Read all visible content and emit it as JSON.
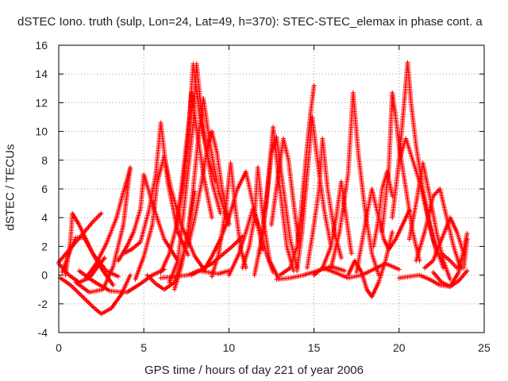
{
  "chart_data": {
    "type": "scatter",
    "title": "dSTEC Iono. truth (sulp, Lon=24, Lat=49, h=370): STEC-STEC_elemax in phase cont. a",
    "xlabel": "GPS time / hours of day 221 of year 2006",
    "ylabel": "dSTEC  / TECUs",
    "xlim": [
      0,
      25
    ],
    "ylim": [
      -4,
      16
    ],
    "xticks": [
      0,
      5,
      10,
      15,
      20,
      25
    ],
    "yticks": [
      -4,
      -2,
      0,
      2,
      4,
      6,
      8,
      10,
      12,
      14,
      16
    ],
    "xtick_labels": [
      "0",
      "5",
      "10",
      "15",
      "20",
      "25"
    ],
    "ytick_labels": [
      "-4",
      "-2",
      "0",
      "2",
      "4",
      "6",
      "8",
      "10",
      "12",
      "14",
      "16"
    ],
    "grid": true,
    "marker": "+",
    "color": "#ff0000",
    "series": [
      {
        "x": [
          0.0,
          0.5,
          1.0,
          1.5,
          2.0,
          2.5
        ],
        "y": [
          0.9,
          1.6,
          2.3,
          3.0,
          3.7,
          4.3
        ]
      },
      {
        "x": [
          0.0,
          0.6,
          1.2,
          1.8,
          2.3,
          2.7
        ],
        "y": [
          0.8,
          0.0,
          -0.5,
          -0.2,
          0.6,
          1.2
        ]
      },
      {
        "x": [
          0.1,
          0.7,
          1.4,
          2.0,
          2.5,
          3.1,
          3.7,
          4.2
        ],
        "y": [
          -0.2,
          -0.7,
          -1.5,
          -2.2,
          -2.7,
          -2.3,
          -1.3,
          0.0
        ]
      },
      {
        "x": [
          0.2,
          0.6,
          1.0,
          1.5,
          2.0,
          2.6,
          3.2
        ],
        "y": [
          0.2,
          1.5,
          2.6,
          2.6,
          1.5,
          0.3,
          -0.7
        ]
      },
      {
        "x": [
          0.4,
          0.7,
          0.8,
          1.2,
          2.0,
          2.8,
          3.5
        ],
        "y": [
          0.0,
          2.5,
          4.3,
          3.5,
          1.5,
          0.3,
          -0.1
        ]
      },
      {
        "x": [
          1.0,
          1.8,
          2.6,
          3.2,
          3.8,
          4.2
        ],
        "y": [
          -0.5,
          -1.2,
          -1.0,
          0.6,
          3.5,
          7.5
        ]
      },
      {
        "x": [
          1.6,
          2.2,
          2.8,
          3.4,
          3.8,
          4.2
        ],
        "y": [
          -0.2,
          0.8,
          2.2,
          4.0,
          5.8,
          7.4
        ]
      },
      {
        "x": [
          1.2,
          2.0,
          3.0,
          4.0,
          4.8,
          5.5,
          6.2
        ],
        "y": [
          0.3,
          -0.4,
          -1.1,
          -1.2,
          -0.6,
          0.0,
          0.4
        ]
      },
      {
        "x": [
          3.5,
          4.0,
          4.4,
          4.8,
          5.0,
          5.5,
          6.2,
          7.0
        ],
        "y": [
          1.0,
          2.0,
          3.0,
          4.6,
          7.0,
          5.0,
          2.5,
          1.0
        ]
      },
      {
        "x": [
          3.8,
          4.3,
          4.8,
          5.3,
          5.7,
          6.0,
          6.4,
          7.0,
          7.6
        ],
        "y": [
          1.5,
          1.8,
          2.3,
          4.5,
          7.0,
          10.6,
          6.5,
          3.0,
          1.4
        ]
      },
      {
        "x": [
          4.5,
          5.0,
          5.5,
          5.8,
          6.2,
          6.6,
          7.2,
          8.0,
          8.6
        ],
        "y": [
          -0.3,
          1.3,
          3.5,
          6.5,
          8.3,
          6.0,
          3.5,
          1.3,
          0.3
        ]
      },
      {
        "x": [
          5.2,
          5.7,
          6.2,
          6.8,
          7.3,
          7.6,
          8.0
        ],
        "y": [
          0.0,
          -0.6,
          -1.0,
          -0.5,
          1.3,
          3.0,
          5.8
        ]
      },
      {
        "x": [
          6.0,
          6.5,
          6.9,
          7.3,
          7.6,
          7.8,
          8.0,
          8.5,
          9.0
        ],
        "y": [
          0.2,
          1.5,
          3.3,
          6.2,
          9.5,
          12.7,
          11.0,
          7.0,
          4.0
        ]
      },
      {
        "x": [
          6.5,
          7.0,
          7.3,
          7.6,
          7.9,
          8.1,
          8.5,
          9.0,
          9.5
        ],
        "y": [
          -0.5,
          1.0,
          4.0,
          7.3,
          10.5,
          14.7,
          10.0,
          6.5,
          4.3
        ]
      },
      {
        "x": [
          6.8,
          7.2,
          7.6,
          7.9,
          8.2,
          8.5,
          8.9,
          9.4,
          10.0
        ],
        "y": [
          -1.0,
          0.6,
          3.0,
          6.0,
          9.5,
          12.3,
          9.0,
          5.8,
          3.5
        ]
      },
      {
        "x": [
          7.0,
          7.4,
          7.7,
          7.9,
          8.3,
          8.8,
          9.2
        ],
        "y": [
          4.0,
          8.0,
          11.2,
          14.7,
          11.0,
          8.0,
          6.5
        ]
      },
      {
        "x": [
          7.6,
          8.0,
          8.4,
          8.8,
          9.0,
          9.3,
          9.6,
          10.0
        ],
        "y": [
          2.0,
          4.0,
          6.5,
          9.3,
          10.0,
          8.5,
          6.0,
          3.6
        ]
      },
      {
        "x": [
          7.8,
          8.4,
          9.0,
          9.6,
          10.2,
          10.8
        ],
        "y": [
          0.0,
          0.4,
          0.8,
          1.4,
          2.0,
          2.7
        ]
      },
      {
        "x": [
          6.0,
          6.8,
          7.6,
          8.2,
          8.8,
          9.4,
          10.0
        ],
        "y": [
          -0.2,
          -0.1,
          0.0,
          0.3,
          0.2,
          0.1,
          0.3
        ]
      },
      {
        "x": [
          8.5,
          9.0,
          9.5,
          10.0,
          10.5,
          11.0,
          11.5,
          12.0
        ],
        "y": [
          0.3,
          1.3,
          2.5,
          4.0,
          6.0,
          7.2,
          4.5,
          1.8
        ]
      },
      {
        "x": [
          9.0,
          9.4,
          9.8,
          10.1,
          10.4,
          10.7,
          11.0
        ],
        "y": [
          -0.1,
          1.5,
          4.5,
          7.8,
          4.5,
          1.8,
          0.5
        ]
      },
      {
        "x": [
          10.0,
          10.6,
          11.0,
          11.4,
          11.8,
          12.2,
          12.6
        ],
        "y": [
          0.0,
          1.5,
          3.0,
          4.6,
          3.2,
          1.5,
          0.2
        ]
      },
      {
        "x": [
          10.8,
          11.2,
          11.5,
          11.7,
          12.0,
          12.4,
          12.9
        ],
        "y": [
          0.5,
          2.0,
          4.0,
          7.5,
          4.0,
          1.0,
          -0.2
        ]
      },
      {
        "x": [
          11.5,
          12.0,
          12.3,
          12.6,
          13.0,
          13.4,
          13.8
        ],
        "y": [
          0.0,
          3.0,
          6.5,
          10.3,
          6.0,
          2.0,
          0.3
        ]
      },
      {
        "x": [
          11.8,
          12.2,
          12.5,
          12.8,
          13.2,
          13.6,
          14.0
        ],
        "y": [
          1.5,
          5.0,
          8.5,
          9.6,
          6.0,
          2.5,
          0.5
        ]
      },
      {
        "x": [
          12.5,
          12.9,
          13.2,
          13.5,
          13.8,
          14.1
        ],
        "y": [
          3.5,
          7.0,
          9.5,
          8.0,
          5.0,
          2.3
        ]
      },
      {
        "x": [
          13.0,
          13.6,
          14.0,
          14.2,
          14.4,
          14.6,
          14.8,
          15.0
        ],
        "y": [
          0.0,
          0.5,
          2.0,
          4.0,
          6.5,
          9.0,
          11.3,
          13.2
        ]
      },
      {
        "x": [
          14.0,
          14.3,
          14.6,
          14.9,
          15.2,
          15.6,
          16.0
        ],
        "y": [
          0.3,
          3.0,
          7.0,
          11.0,
          8.0,
          4.5,
          2.0
        ]
      },
      {
        "x": [
          14.6,
          15.0,
          15.3,
          15.5,
          15.8,
          16.2,
          16.6
        ],
        "y": [
          0.5,
          3.5,
          6.0,
          9.5,
          6.0,
          3.0,
          1.2
        ]
      },
      {
        "x": [
          15.0,
          15.5,
          16.0,
          16.3,
          16.6,
          16.9,
          17.2
        ],
        "y": [
          0.0,
          0.5,
          2.0,
          4.0,
          6.5,
          4.0,
          1.5
        ]
      },
      {
        "x": [
          16.0,
          16.5,
          17.0,
          17.3,
          17.6,
          18.0,
          18.4,
          18.8
        ],
        "y": [
          0.5,
          3.0,
          7.0,
          12.7,
          8.5,
          4.5,
          1.5,
          0.0
        ]
      },
      {
        "x": [
          17.0,
          17.4,
          17.8,
          18.1,
          18.4,
          18.8,
          19.2,
          19.6
        ],
        "y": [
          0.0,
          1.0,
          0.2,
          -1.0,
          -1.5,
          -0.5,
          1.0,
          3.0
        ]
      },
      {
        "x": [
          17.5,
          18.0,
          18.4,
          18.8,
          19.1,
          19.4,
          19.8,
          20.2,
          20.6
        ],
        "y": [
          0.2,
          3.5,
          6.0,
          4.0,
          2.5,
          1.8,
          2.5,
          3.5,
          4.5
        ]
      },
      {
        "x": [
          18.5,
          18.8,
          19.0,
          19.3,
          19.6
        ],
        "y": [
          2.0,
          4.0,
          6.0,
          7.2,
          5.5
        ]
      },
      {
        "x": [
          19.0,
          19.4,
          19.6,
          19.8,
          20.0,
          20.4,
          20.8,
          21.2
        ],
        "y": [
          3.0,
          7.5,
          12.7,
          11.0,
          9.0,
          6.0,
          3.0,
          1.0
        ]
      },
      {
        "x": [
          19.6,
          20.0,
          20.3,
          20.5,
          20.7,
          21.0,
          21.4,
          21.8,
          22.2
        ],
        "y": [
          4.0,
          8.0,
          12.0,
          14.8,
          12.0,
          9.0,
          6.0,
          3.5,
          1.5
        ]
      },
      {
        "x": [
          20.0,
          20.4,
          20.8,
          21.2,
          21.6,
          22.0,
          22.6
        ],
        "y": [
          8.0,
          9.5,
          8.0,
          6.5,
          4.5,
          2.5,
          0.5
        ]
      },
      {
        "x": [
          20.6,
          21.0,
          21.4,
          21.8,
          22.2,
          22.6,
          23.0
        ],
        "y": [
          2.5,
          5.0,
          7.8,
          5.5,
          3.0,
          1.0,
          -0.3
        ]
      },
      {
        "x": [
          21.0,
          21.5,
          22.0,
          22.4,
          22.8,
          23.2,
          23.6
        ],
        "y": [
          1.0,
          3.0,
          5.5,
          6.0,
          4.0,
          2.0,
          0.5
        ]
      },
      {
        "x": [
          21.5,
          22.0,
          22.5,
          23.0,
          23.4,
          23.8
        ],
        "y": [
          0.5,
          1.0,
          2.5,
          4.0,
          3.0,
          1.5
        ]
      },
      {
        "x": [
          20.0,
          20.6,
          21.2,
          21.8,
          22.4,
          23.0,
          23.5,
          24.0
        ],
        "y": [
          -0.2,
          -0.1,
          0.0,
          -0.3,
          -0.7,
          -0.8,
          0.2,
          2.9
        ]
      },
      {
        "x": [
          22.0,
          22.5,
          23.0,
          23.5,
          24.0
        ],
        "y": [
          0.2,
          -0.5,
          -0.8,
          -0.4,
          0.3
        ]
      },
      {
        "x": [
          22.5,
          23.0,
          23.4,
          23.8,
          24.0
        ],
        "y": [
          1.5,
          1.0,
          0.5,
          0.5,
          2.5
        ]
      },
      {
        "x": [
          15.5,
          16.2,
          17.0,
          17.8,
          18.5,
          19.2,
          20.0
        ],
        "y": [
          0.5,
          0.2,
          -0.2,
          0.0,
          0.4,
          0.8,
          0.4
        ]
      },
      {
        "x": [
          12.8,
          13.6,
          14.4,
          15.2,
          16.0,
          16.8
        ],
        "y": [
          -0.3,
          -0.2,
          0.0,
          0.3,
          0.6,
          0.3
        ]
      }
    ]
  }
}
